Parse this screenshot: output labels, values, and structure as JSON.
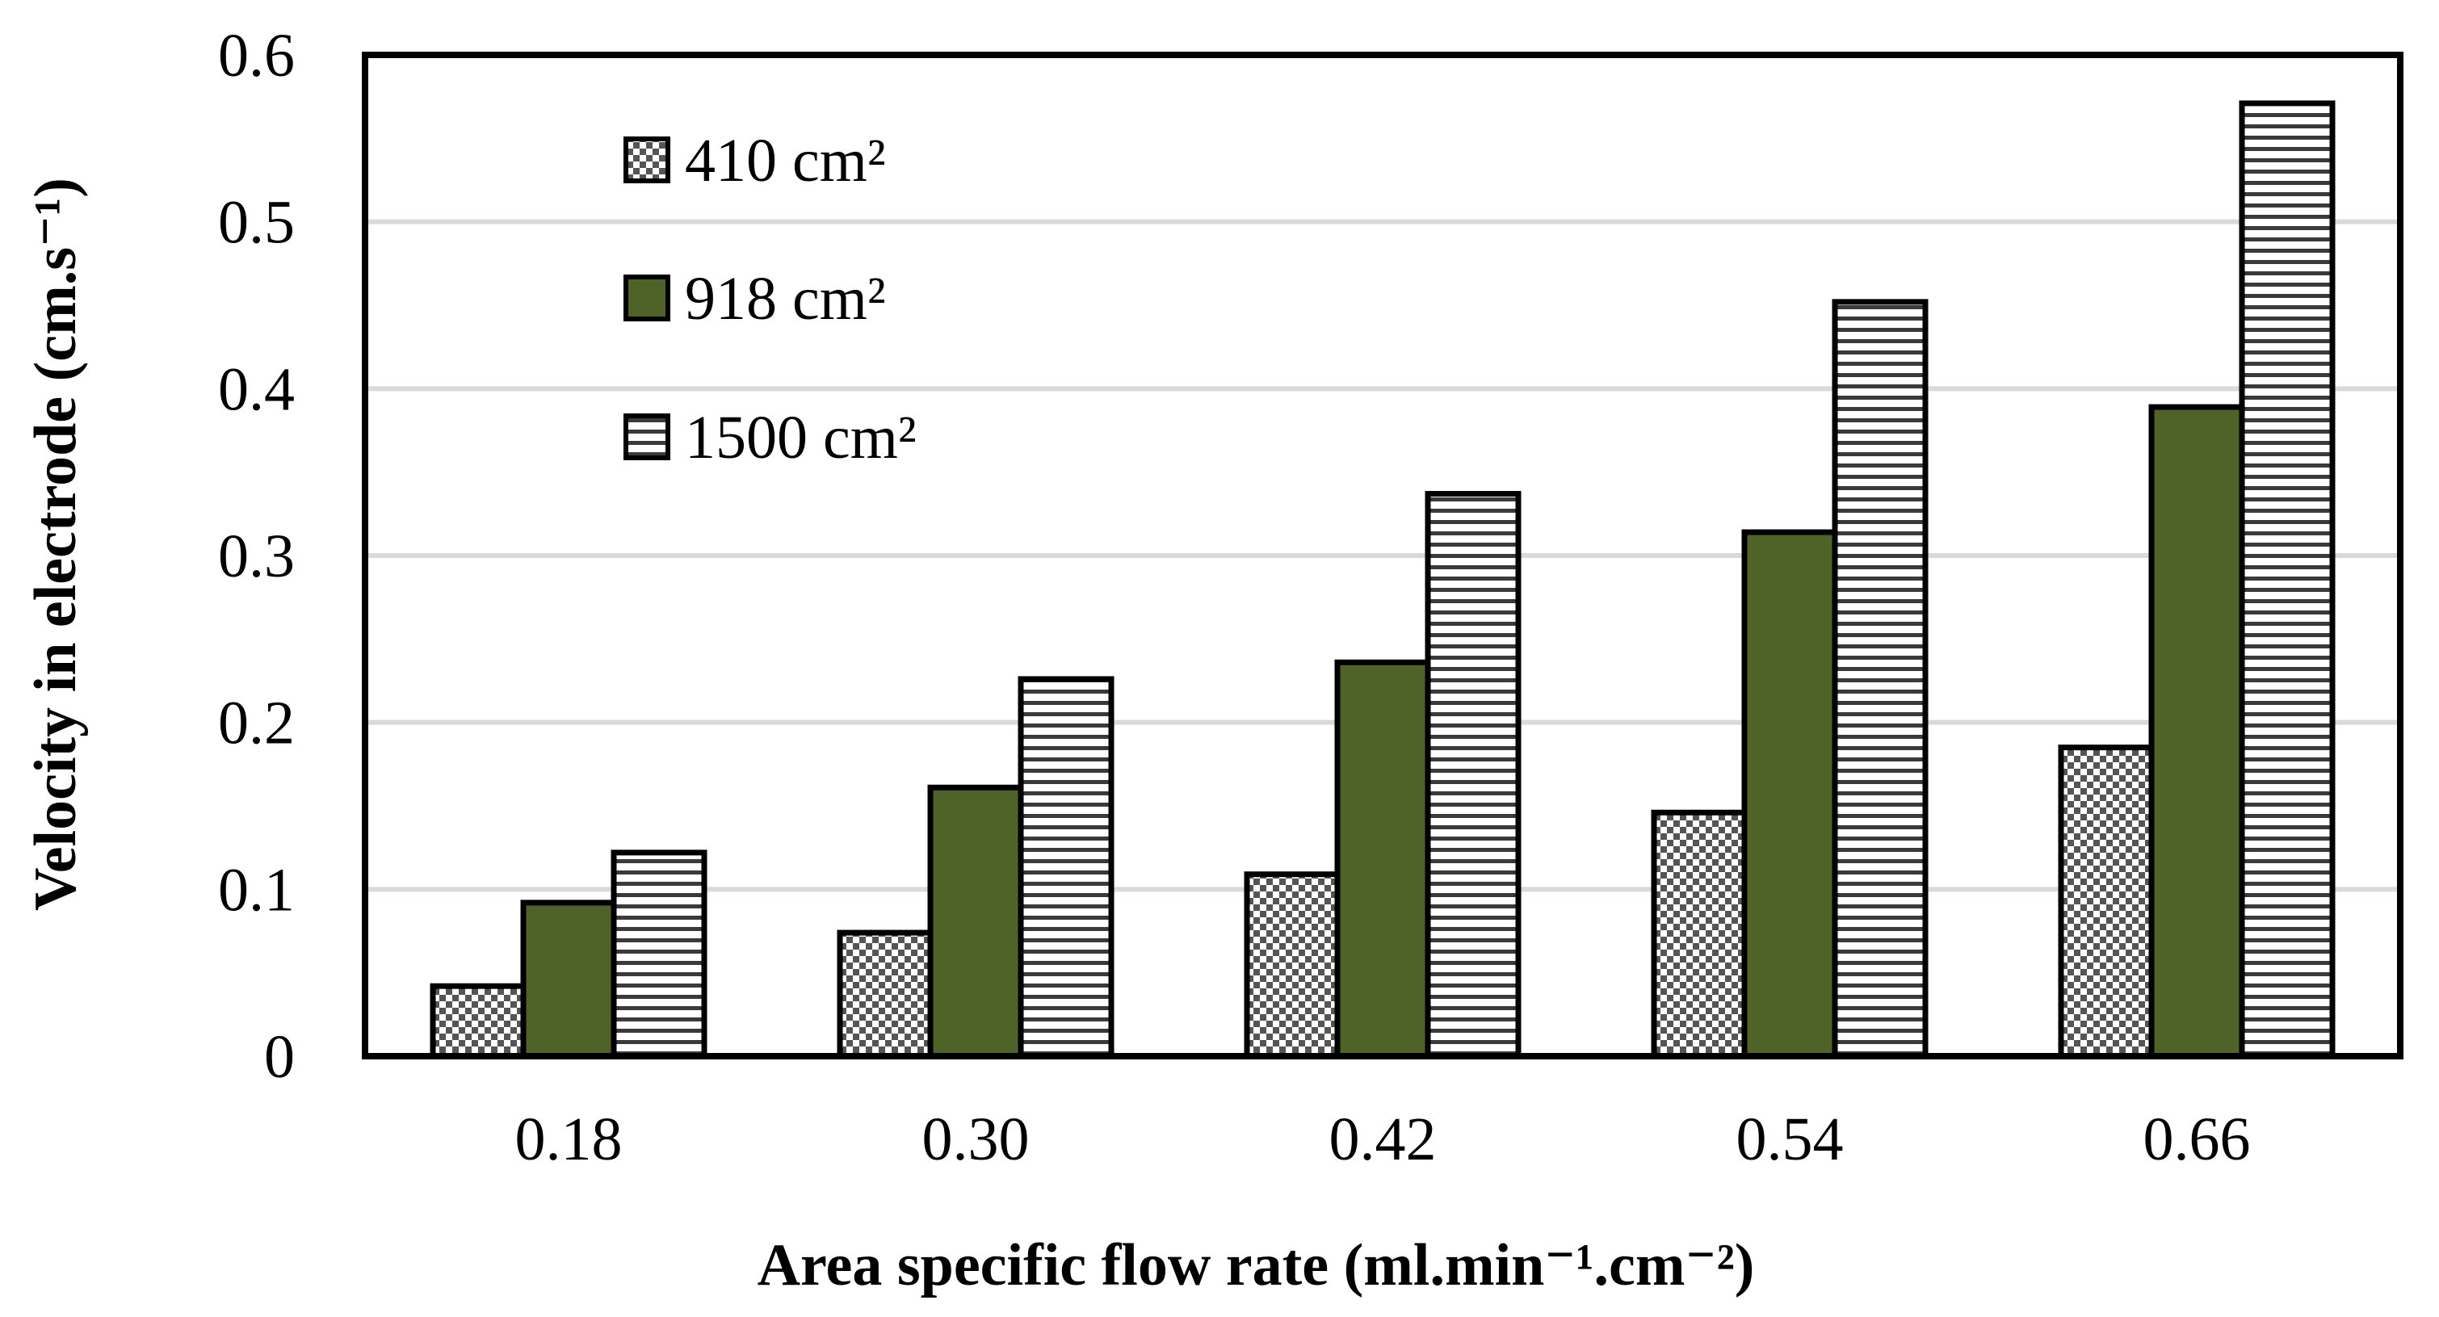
{
  "chart_data": {
    "type": "bar",
    "title": "",
    "xlabel": "Area specific flow rate (ml.min⁻¹.cm⁻²)",
    "ylabel": "Velocity in electrode (cm.s⁻¹)",
    "categories": [
      "0.18",
      "0.30",
      "0.42",
      "0.54",
      "0.66"
    ],
    "ylim": [
      0,
      0.6
    ],
    "yticks": [
      0,
      0.1,
      0.2,
      0.3,
      0.4,
      0.5,
      0.6
    ],
    "ytick_labels": [
      "0",
      "0.1",
      "0.2",
      "0.3",
      "0.4",
      "0.5",
      "0.6"
    ],
    "grid": true,
    "legend_position": "top-left",
    "series": [
      {
        "name": "410 cm²",
        "pattern": "checker",
        "color": "#9e9e9e",
        "values": [
          0.042,
          0.074,
          0.109,
          0.146,
          0.185
        ]
      },
      {
        "name": "918 cm²",
        "pattern": "solid",
        "color": "#4f6228",
        "values": [
          0.092,
          0.161,
          0.236,
          0.314,
          0.389
        ]
      },
      {
        "name": "1500 cm²",
        "pattern": "hstripes",
        "color": "#ffffff",
        "values": [
          0.122,
          0.226,
          0.337,
          0.452,
          0.571
        ]
      }
    ]
  }
}
